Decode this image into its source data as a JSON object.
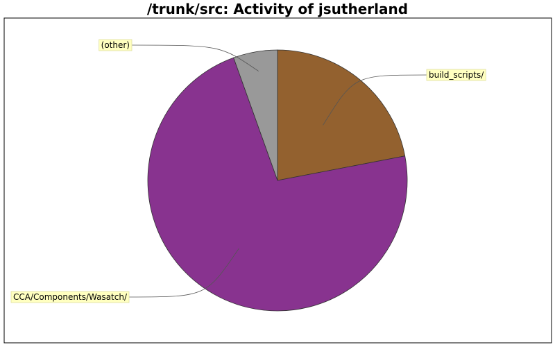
{
  "chart_data": {
    "type": "pie",
    "title": "/trunk/src: Activity of jsutherland",
    "slices": [
      {
        "label": "build_scripts/",
        "value": 22.0,
        "color": "#93612f"
      },
      {
        "label": "CCA/Components/Wasatch/",
        "value": 72.5,
        "color": "#88338f"
      },
      {
        "label": "(other)",
        "value": 5.5,
        "color": "#999999"
      }
    ],
    "legend": "none",
    "label_box_color": "#ffffc0"
  }
}
